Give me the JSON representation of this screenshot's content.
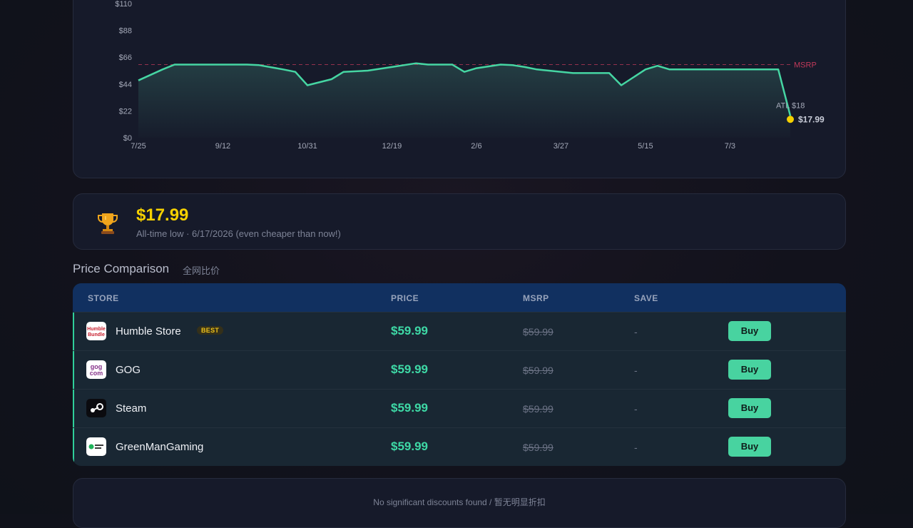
{
  "chart_data": {
    "type": "line",
    "title": "",
    "xlabel": "",
    "ylabel": "",
    "x_ticks": [
      "7/25",
      "9/12",
      "10/31",
      "12/19",
      "2/6",
      "3/27",
      "5/15",
      "7/3"
    ],
    "y_ticks": [
      "$0",
      "$22",
      "$44",
      "$66",
      "$88",
      "$110"
    ],
    "ylim": [
      0,
      110
    ],
    "x_index_range": [
      0,
      54
    ],
    "series": [
      {
        "x": [
          0,
          2,
          3,
          9,
          10,
          12,
          13,
          14,
          16,
          17,
          19,
          21,
          23,
          24,
          26,
          27,
          28,
          30,
          31,
          32,
          33,
          34,
          36,
          38,
          39,
          40,
          42,
          43,
          44,
          48,
          53,
          54
        ],
        "y": [
          47,
          56,
          59.99,
          59.99,
          59.5,
          56,
          54,
          43,
          48,
          54,
          55,
          58,
          61,
          59.99,
          59.99,
          54,
          57,
          59.99,
          59.5,
          58,
          56,
          55,
          53,
          53,
          53,
          43,
          56,
          59,
          56,
          56,
          56,
          17.99
        ]
      }
    ],
    "reference_lines": [
      {
        "name": "MSRP",
        "value": 59.99,
        "color": "#c0395a"
      }
    ],
    "annotations": [
      {
        "label": "ATL $18",
        "value": 18
      },
      {
        "label": "$17.99",
        "value": 17.99
      }
    ],
    "colors": {
      "line": "#46d6a3",
      "current_marker": "#f5d000",
      "msrp": "#c0395a"
    },
    "grid": false
  },
  "atl": {
    "icon": "trophy-icon",
    "price": "$17.99",
    "subtitle": "All-time low · 6/17/2026 (even cheaper than now!)"
  },
  "comparison": {
    "title": "Price Comparison",
    "subtitle": "全网比价",
    "headers": {
      "store": "STORE",
      "price": "PRICE",
      "msrp": "MSRP",
      "save": "SAVE"
    },
    "rows": [
      {
        "store": "Humble Store",
        "badge": "BEST",
        "price": "$59.99",
        "msrp": "$59.99",
        "save": "-",
        "buy": "Buy",
        "logo": "humble-bundle-logo"
      },
      {
        "store": "GOG",
        "price": "$59.99",
        "msrp": "$59.99",
        "save": "-",
        "buy": "Buy",
        "logo": "gog-logo"
      },
      {
        "store": "Steam",
        "price": "$59.99",
        "msrp": "$59.99",
        "save": "-",
        "buy": "Buy",
        "logo": "steam-logo"
      },
      {
        "store": "GreenManGaming",
        "price": "$59.99",
        "msrp": "$59.99",
        "save": "-",
        "buy": "Buy",
        "logo": "greenmangaming-logo"
      }
    ]
  },
  "no_discounts": "No significant discounts found / 暂无明显折扣"
}
